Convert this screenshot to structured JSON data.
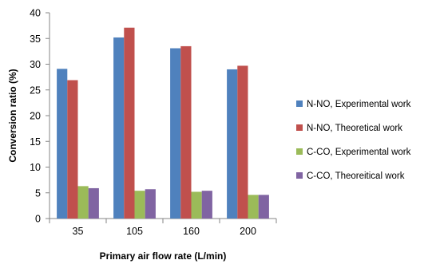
{
  "chart_data": {
    "type": "bar",
    "title": "",
    "xlabel": "Primary air flow rate (L/min)",
    "ylabel": "Conversion ratio (%)",
    "categories": [
      "35",
      "105",
      "160",
      "200"
    ],
    "ylim": [
      0,
      40
    ],
    "yticks": [
      0,
      5,
      10,
      15,
      20,
      25,
      30,
      35,
      40
    ],
    "grid": false,
    "legend_position": "right",
    "series": [
      {
        "name": "N-NO, Experimental work",
        "color": "#4f81bd",
        "values": [
          29.1,
          35.2,
          33.1,
          29.0
        ]
      },
      {
        "name": "N-NO, Theoretical work",
        "color": "#c0504d",
        "values": [
          26.9,
          37.1,
          33.5,
          29.7
        ]
      },
      {
        "name": "C-CO, Experimental work",
        "color": "#9bbb59",
        "values": [
          6.3,
          5.4,
          5.2,
          4.6
        ]
      },
      {
        "name": "C-CO, Theoreitical work",
        "color": "#8064a2",
        "values": [
          5.9,
          5.7,
          5.4,
          4.6
        ]
      }
    ]
  }
}
